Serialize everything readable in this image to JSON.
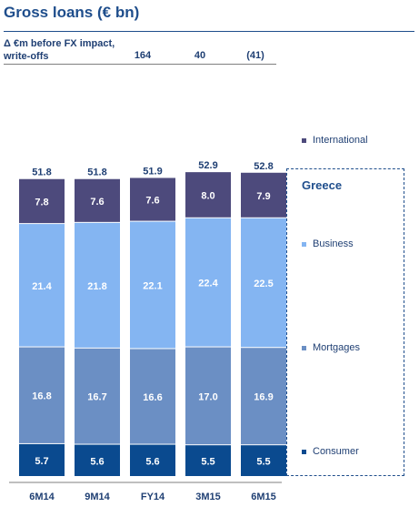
{
  "title": "Gross loans (€ bn)",
  "delta": {
    "label_line1": "Δ €m before FX impact,",
    "label_line2": "write-offs",
    "values": [
      "164",
      "40",
      "(41)"
    ]
  },
  "greece_label": "Greece",
  "chart_data": {
    "type": "bar",
    "stacked": true,
    "title": "Gross loans (€ bn)",
    "categories": [
      "6M14",
      "9M14",
      "FY14",
      "3M15",
      "6M15"
    ],
    "totals": [
      "51.8",
      "51.8",
      "51.9",
      "52.9",
      "52.8"
    ],
    "series": [
      {
        "name": "Consumer",
        "color": "#0a4a8f",
        "values": [
          5.7,
          5.6,
          5.6,
          5.5,
          5.5
        ]
      },
      {
        "name": "Mortgages",
        "color": "#6b8fc4",
        "values": [
          16.8,
          16.7,
          16.6,
          17.0,
          16.9
        ]
      },
      {
        "name": "Business",
        "color": "#84b5f2",
        "values": [
          21.4,
          21.8,
          22.1,
          22.4,
          22.5
        ]
      },
      {
        "name": "International",
        "color": "#4d4a7c",
        "values": [
          7.8,
          7.6,
          7.6,
          8.0,
          7.9
        ]
      }
    ],
    "legend_position": "right",
    "grid": false
  }
}
